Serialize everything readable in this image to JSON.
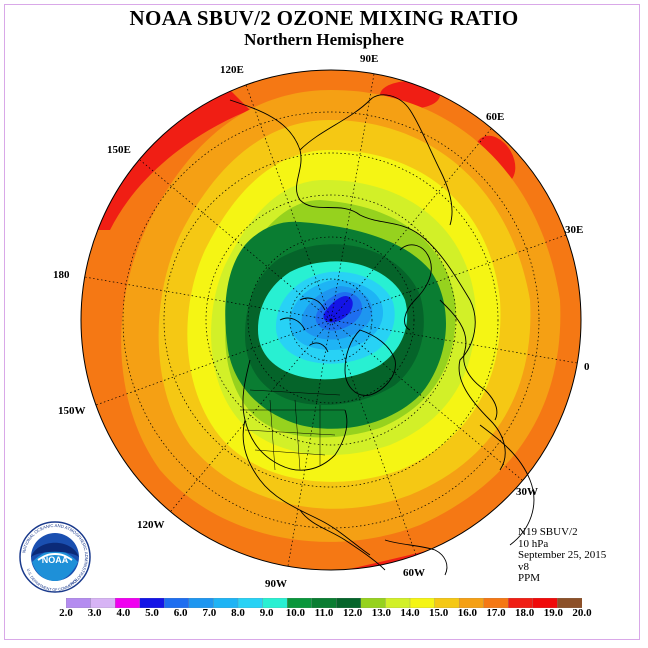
{
  "title": "NOAA SBUV/2 OZONE MIXING RATIO",
  "subtitle": "Northern Hemisphere",
  "longitude_labels": {
    "lon_90e": "90E",
    "lon_60e": "60E",
    "lon_30e": "30E",
    "lon_0": "0",
    "lon_30w": "30W",
    "lon_60w": "60W",
    "lon_90w": "90W",
    "lon_120w": "120W",
    "lon_150w": "150W",
    "lon_180": "180",
    "lon_150e": "150E",
    "lon_120e": "120E"
  },
  "info": {
    "instrument": "N19 SBUV/2",
    "pressure_level": "10 hPa",
    "date": "September 25, 2015",
    "version": "v8",
    "units": "PPM"
  },
  "logo": {
    "text": "NOAA",
    "ring_text": "NATIONAL OCEANIC AND ATMOSPHERIC ADMINISTRATION",
    "bottom_text": "U.S. DEPARTMENT OF COMMERCE"
  },
  "colorbar": {
    "ticks": [
      "2.0",
      "3.0",
      "4.0",
      "5.0",
      "6.0",
      "7.0",
      "8.0",
      "9.0",
      "10.0",
      "11.0",
      "12.0",
      "13.0",
      "14.0",
      "15.0",
      "16.0",
      "17.0",
      "18.0",
      "19.0",
      "20.0"
    ],
    "colors": [
      "#b48cf0",
      "#d7b4f5",
      "#f000f0",
      "#1414e6",
      "#1e6ef0",
      "#1e96f0",
      "#1eb4f5",
      "#28d2f5",
      "#28f0d2",
      "#0a963c",
      "#0a7d32",
      "#05642a",
      "#96d21e",
      "#d2f028",
      "#f5f514",
      "#f5c814",
      "#f5a014",
      "#f57814",
      "#f01e14",
      "#f00a0a",
      "#8c5028"
    ]
  }
}
